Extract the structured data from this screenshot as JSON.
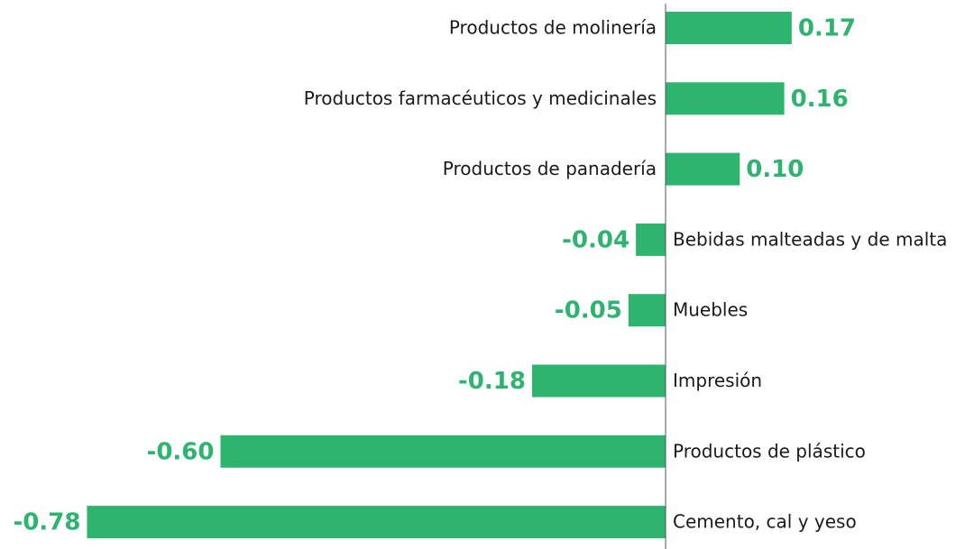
{
  "chart_data": {
    "type": "barh",
    "categories": [
      "Productos de molinería",
      "Productos farmacéuticos y medicinales",
      "Productos de panadería",
      "Bebidas malteadas y de malta",
      "Muebles",
      "Impresión",
      "Productos de plástico",
      "Cemento, cal y yeso"
    ],
    "values": [
      0.17,
      0.16,
      0.1,
      -0.04,
      -0.05,
      -0.18,
      -0.6,
      -0.78
    ],
    "value_labels": [
      "0.17",
      "0.16",
      "0.10",
      "-0.04",
      "-0.05",
      "-0.18",
      "-0.60",
      "-0.78"
    ],
    "color": "#2db46f",
    "xlim": [
      -0.8,
      0.4
    ]
  }
}
